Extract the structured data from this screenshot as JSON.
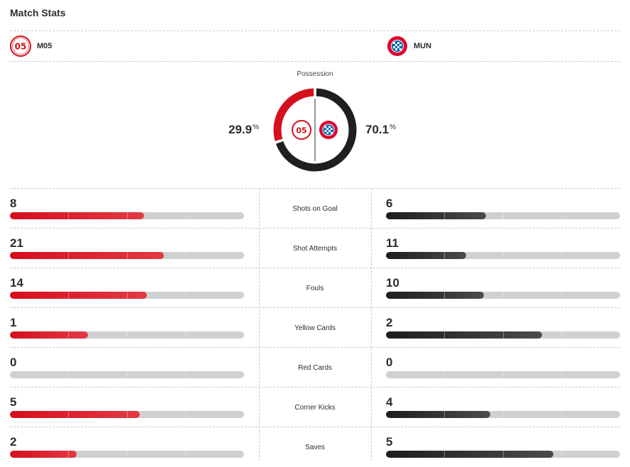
{
  "title": "Match Stats",
  "home": {
    "abbr": "M05",
    "logo_icon": "mainz-05-crest-icon",
    "color": "#d50f1d"
  },
  "away": {
    "abbr": "MUN",
    "logo_icon": "bayern-munich-crest-icon",
    "color": "#2b2c2d"
  },
  "possession": {
    "label": "Possession",
    "home_value": "29.9",
    "away_value": "70.1",
    "unit": "%",
    "home_pct": 29.9,
    "away_pct": 70.1
  },
  "stats": [
    {
      "label": "Shots on Goal",
      "home": "8",
      "away": "6"
    },
    {
      "label": "Shot Attempts",
      "home": "21",
      "away": "11"
    },
    {
      "label": "Fouls",
      "home": "14",
      "away": "10"
    },
    {
      "label": "Yellow Cards",
      "home": "1",
      "away": "2"
    },
    {
      "label": "Red Cards",
      "home": "0",
      "away": "0"
    },
    {
      "label": "Corner Kicks",
      "home": "5",
      "away": "4"
    },
    {
      "label": "Saves",
      "home": "2",
      "away": "5"
    }
  ]
}
